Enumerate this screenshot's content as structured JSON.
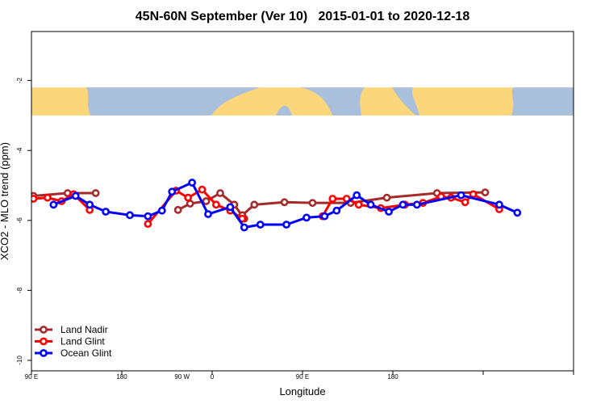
{
  "chart_data": {
    "type": "line",
    "title": "45N-60N September (Ver 10)   2015-01-01 to 2020-12-18",
    "xlabel": "Longitude",
    "ylabel": "XCO2 - MLO trend (ppm)",
    "xlim": [
      -90,
      180
    ],
    "ylim": [
      -10.3,
      -0.6
    ],
    "x_tick_values": [
      -90,
      -45,
      0,
      45,
      90,
      135,
      180
    ],
    "x_tick_labels": [
      "90 E",
      "180",
      "90 W",
      "0",
      "90 E",
      "180"
    ],
    "x_tick_label_positions": [
      -90,
      -45,
      -15,
      0,
      45,
      90
    ],
    "y_ticks": [
      -2,
      -4,
      -6,
      -8,
      -10
    ],
    "map_strip": {
      "y_top": -2.2,
      "y_bottom": -3.0,
      "land_color": "#fcd67a",
      "ocean_color": "#a9bfdc"
    },
    "legend_position": "bottom-left",
    "series": [
      {
        "name": "Land Nadir",
        "color": "#a52a2a",
        "points": [
          [
            -89,
            -5.3
          ],
          [
            -72,
            -5.22
          ],
          [
            -58,
            -5.22
          ],
          [
            -17,
            -5.7
          ],
          [
            -11,
            -5.52
          ],
          [
            -3,
            -5.45
          ],
          [
            4,
            -5.22
          ],
          [
            11,
            -5.55
          ],
          [
            16,
            -5.95
          ],
          [
            15,
            -5.85
          ],
          [
            21,
            -5.55
          ],
          [
            36,
            -5.48
          ],
          [
            50,
            -5.5
          ],
          [
            69,
            -5.5
          ],
          [
            87,
            -5.35
          ],
          [
            112,
            -5.22
          ],
          [
            136,
            -5.2
          ]
        ]
      },
      {
        "name": "Land Glint",
        "color": "#ff0000",
        "points": [
          [
            -89,
            -5.38
          ],
          [
            -82,
            -5.35
          ],
          [
            -75,
            -5.45
          ],
          [
            -69,
            -5.25
          ],
          [
            -61,
            -5.7
          ],
          [
            -32,
            -6.1
          ],
          [
            -18,
            -5.15
          ],
          [
            -12,
            -5.35
          ],
          [
            -5,
            -5.12
          ],
          [
            2,
            -5.55
          ],
          [
            9,
            -5.72
          ],
          [
            15,
            -5.95
          ],
          [
            55,
            -5.88
          ],
          [
            60,
            -5.38
          ],
          [
            67,
            -5.38
          ],
          [
            73,
            -5.55
          ],
          [
            84,
            -5.65
          ],
          [
            96,
            -5.55
          ],
          [
            105,
            -5.5
          ],
          [
            114,
            -5.32
          ],
          [
            119,
            -5.35
          ],
          [
            126,
            -5.48
          ],
          [
            130,
            -5.25
          ],
          [
            143,
            -5.68
          ]
        ]
      },
      {
        "name": "Ocean Glint",
        "color": "#0000ff",
        "points": [
          [
            -79,
            -5.55
          ],
          [
            -68,
            -5.3
          ],
          [
            -61,
            -5.55
          ],
          [
            -53,
            -5.75
          ],
          [
            -41,
            -5.85
          ],
          [
            -32,
            -5.88
          ],
          [
            -25,
            -5.72
          ],
          [
            -20,
            -5.18
          ],
          [
            -10,
            -4.92
          ],
          [
            -2,
            -5.82
          ],
          [
            9,
            -5.62
          ],
          [
            16,
            -6.2
          ],
          [
            24,
            -6.12
          ],
          [
            37,
            -6.12
          ],
          [
            47,
            -5.92
          ],
          [
            56,
            -5.88
          ],
          [
            62,
            -5.72
          ],
          [
            72,
            -5.28
          ],
          [
            79,
            -5.55
          ],
          [
            88,
            -5.75
          ],
          [
            95,
            -5.55
          ],
          [
            102,
            -5.55
          ],
          [
            124,
            -5.28
          ],
          [
            143,
            -5.55
          ],
          [
            152,
            -5.78
          ]
        ]
      }
    ]
  }
}
